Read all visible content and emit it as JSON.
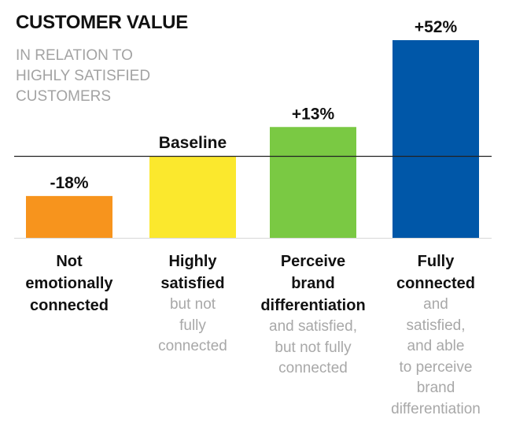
{
  "header": {
    "title": "CUSTOMER VALUE",
    "subtitle_lines": [
      "IN RELATION TO",
      "HIGHLY SATISFIED",
      "CUSTOMERS"
    ]
  },
  "chart_data": {
    "type": "bar",
    "title": "CUSTOMER VALUE",
    "subtitle": "IN RELATION TO HIGHLY SATISFIED CUSTOMERS",
    "ylabel": "",
    "xlabel": "",
    "baseline_label": "Baseline",
    "ylim": [
      -29,
      52
    ],
    "categories": [
      {
        "name_lines": [
          "Not",
          "emotionally",
          "connected"
        ],
        "sub_lines": [],
        "value": -18,
        "label": "-18%",
        "color": "#f7941d"
      },
      {
        "name_lines": [
          "Highly",
          "satisfied"
        ],
        "sub_lines": [
          "but not",
          "fully",
          "connected"
        ],
        "value": 0,
        "label": "Baseline",
        "color": "#fbe82d"
      },
      {
        "name_lines": [
          "Perceive",
          "brand",
          "differentiation"
        ],
        "sub_lines": [
          "and satisfied,",
          "but not fully",
          "connected"
        ],
        "value": 13,
        "label": "+13%",
        "color": "#7ac943"
      },
      {
        "name_lines": [
          "Fully",
          "connected"
        ],
        "sub_lines": [
          "and",
          "satisfied,",
          "and able",
          "to perceive",
          "brand",
          "differentiation"
        ],
        "value": 52,
        "label": "+52%",
        "color": "#0057a8"
      }
    ],
    "grid": false
  }
}
